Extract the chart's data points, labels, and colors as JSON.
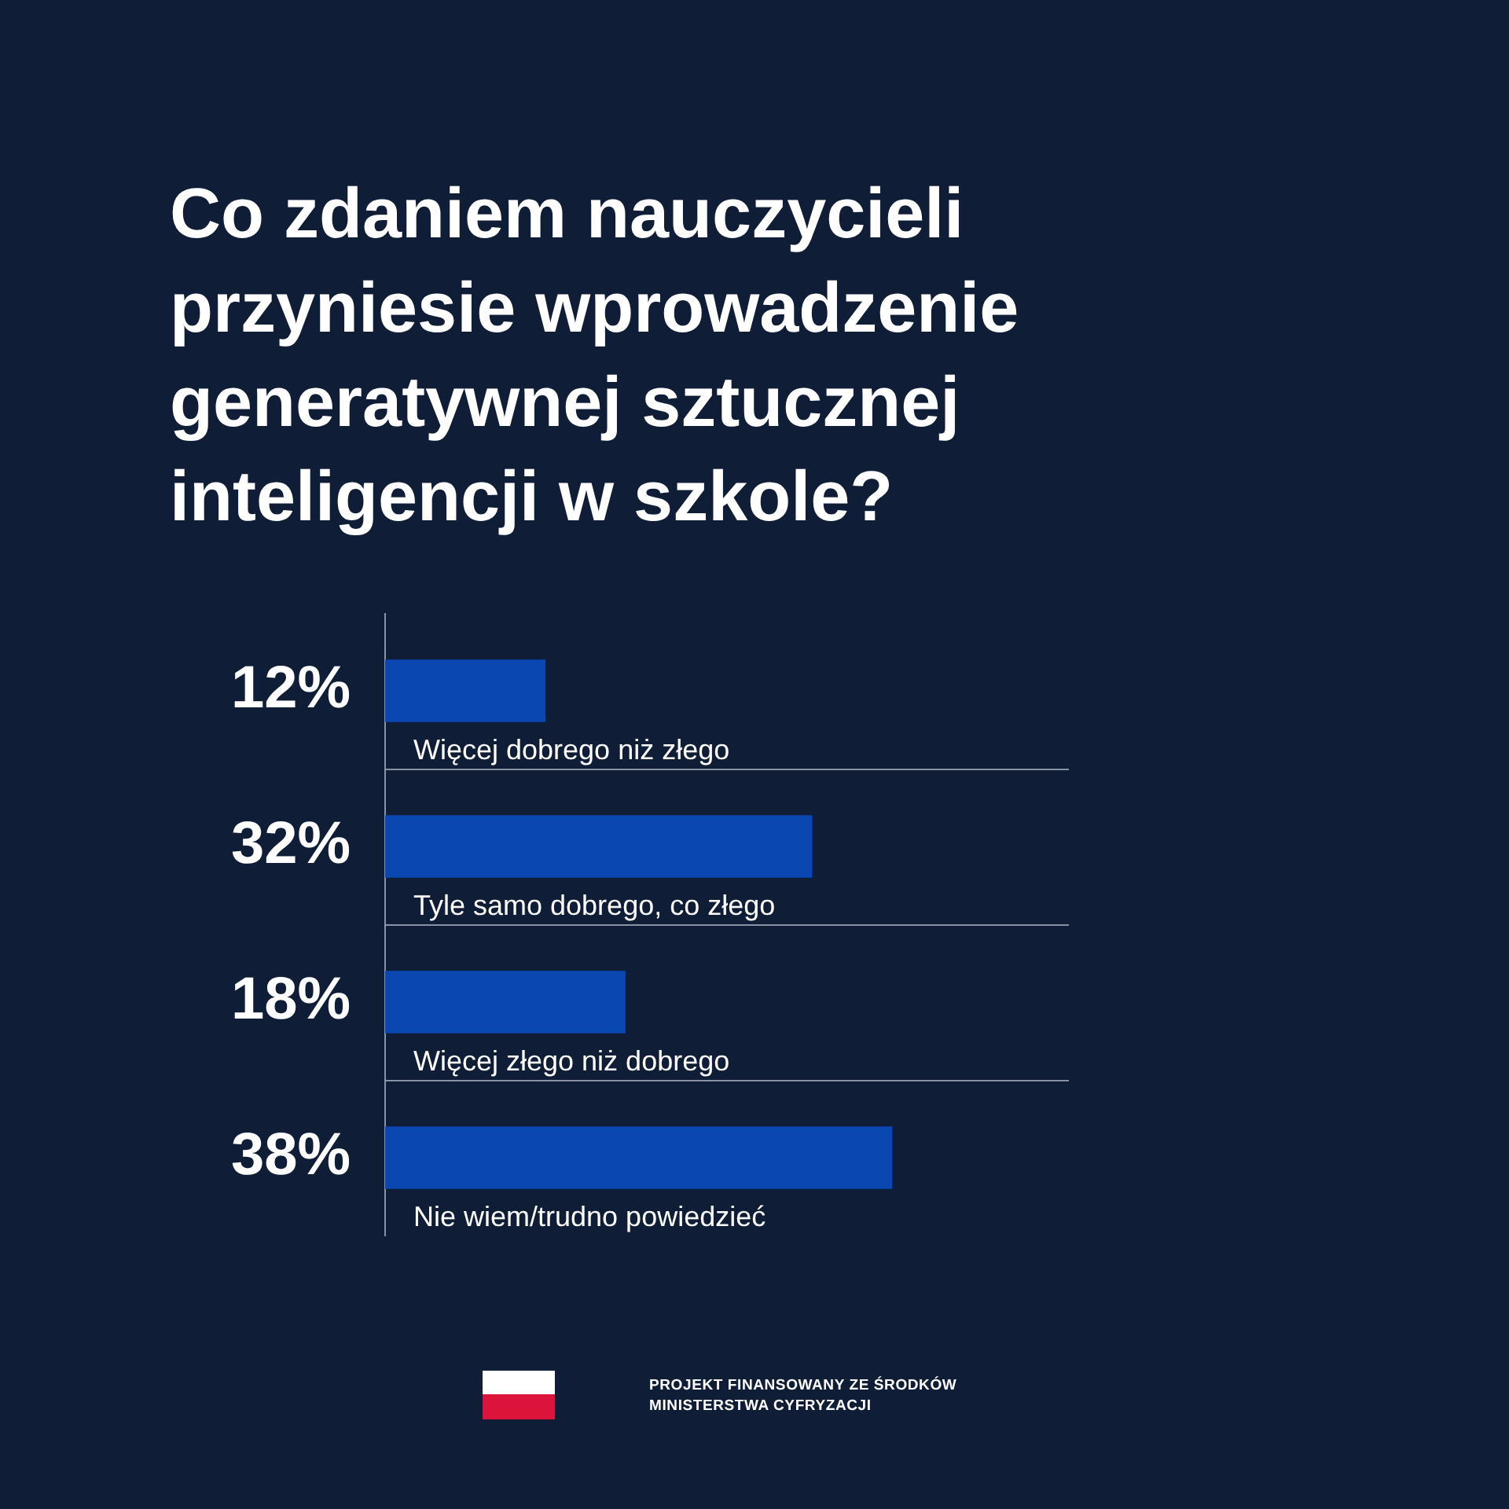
{
  "chart_data": {
    "type": "bar",
    "orientation": "horizontal",
    "title": "Co zdaniem nauczycieli przyniesie wprowadzenie generatywnej sztucznej inteligencji w szkole?",
    "categories": [
      "Więcej dobrego niż złego",
      "Tyle samo dobrego, co złego",
      "Więcej złego niż dobrego",
      "Nie wiem/trudno powiedzieć"
    ],
    "values": [
      12,
      32,
      18,
      38
    ],
    "value_labels": [
      "12%",
      "32%",
      "18%",
      "38%"
    ],
    "color": "#0a47b0",
    "grid": "y",
    "annotations": [
      "PROJEKT FINANSOWANY ZE ŚRODKÓW",
      "MINISTERSTWA CYFRYZACJI"
    ]
  }
}
